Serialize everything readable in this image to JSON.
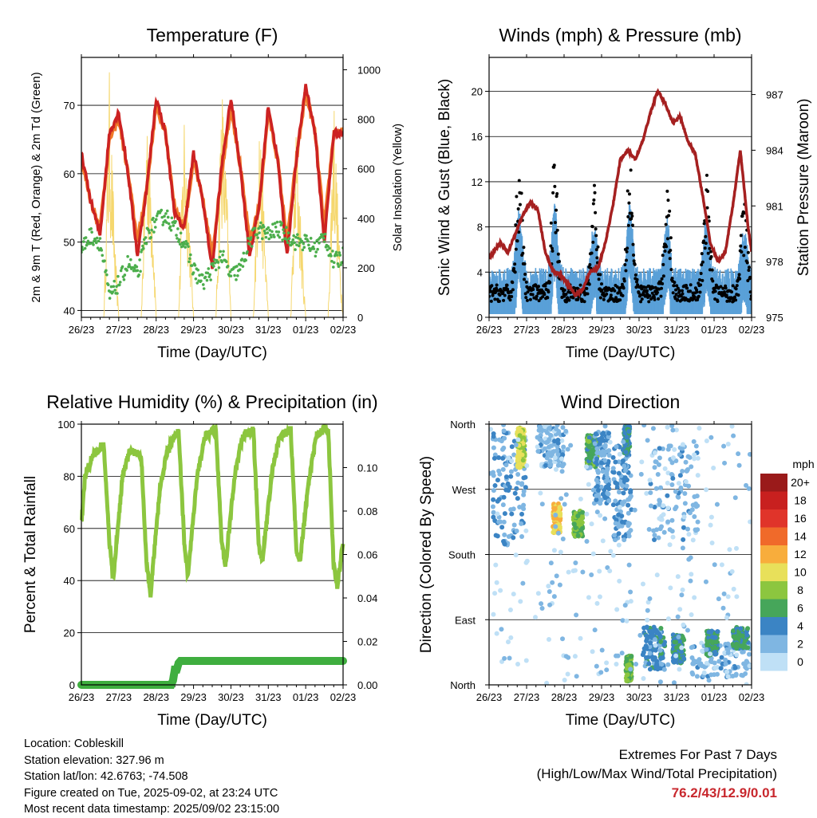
{
  "chart_data": [
    {
      "type": "line",
      "title": "Temperature (F)",
      "xlabel": "Time (Day/UTC)",
      "ylabel": "2m & 9m T (Red, Orange) & 2m Td (Green)",
      "ylabel_right": "Solar Insolation (Yellow)",
      "xticks": [
        "26/23",
        "27/23",
        "28/23",
        "29/23",
        "30/23",
        "31/23",
        "01/23",
        "02/23"
      ],
      "ylim": [
        39,
        77
      ],
      "yticks": [
        40,
        50,
        60,
        70
      ],
      "ylim_right": [
        0,
        1050
      ],
      "yticks_right": [
        0,
        200,
        400,
        600,
        800,
        1000
      ],
      "grid": true,
      "colors": {
        "t2m": "#cc2222",
        "t9m": "#f07a2a",
        "td2m": "#4cae4c",
        "solar": "#f5d76e"
      },
      "series": [
        {
          "name": "2m T",
          "x": [
            0,
            0.25,
            0.5,
            0.75,
            1,
            1.25,
            1.5,
            1.75,
            2,
            2.25,
            2.5,
            2.75,
            3,
            3.25,
            3.5,
            3.75,
            4,
            4.25,
            4.5,
            4.75,
            5,
            5.25,
            5.5,
            5.75,
            6,
            6.25,
            6.5,
            6.75,
            7
          ],
          "values": [
            63,
            56,
            51,
            66,
            69,
            60,
            48,
            58,
            71,
            66,
            54,
            52,
            63,
            56,
            46,
            61,
            71,
            61,
            48,
            55,
            70,
            62,
            48,
            62,
            73,
            66,
            50,
            66,
            66
          ]
        },
        {
          "name": "9m T",
          "x": [
            0,
            0.25,
            0.5,
            0.75,
            1,
            1.25,
            1.5,
            1.75,
            2,
            2.25,
            2.5,
            2.75,
            3,
            3.25,
            3.5,
            3.75,
            4,
            4.25,
            4.5,
            4.75,
            5,
            5.25,
            5.5,
            5.75,
            6,
            6.25,
            6.5,
            6.75,
            7
          ],
          "values": [
            62,
            56,
            52,
            65,
            68,
            60,
            50,
            58,
            70,
            66,
            55,
            52,
            62,
            56,
            48,
            60,
            70,
            61,
            50,
            55,
            69,
            62,
            50,
            62,
            72,
            66,
            52,
            66,
            66
          ]
        },
        {
          "name": "2m Td",
          "x": [
            0,
            0.25,
            0.5,
            0.75,
            1,
            1.25,
            1.5,
            1.75,
            2,
            2.25,
            2.5,
            2.75,
            3,
            3.25,
            3.5,
            3.75,
            4,
            4.25,
            4.5,
            4.75,
            5,
            5.25,
            5.5,
            5.75,
            6,
            6.25,
            6.5,
            6.75,
            7
          ],
          "values": [
            49,
            51,
            50,
            42,
            44,
            47,
            45,
            51,
            53,
            54,
            52,
            50,
            46,
            44,
            46,
            48,
            45,
            46,
            50,
            52,
            51,
            52,
            51,
            50,
            50,
            49,
            51,
            47,
            48
          ]
        },
        {
          "name": "Solar",
          "x": [
            0,
            0.6,
            0.75,
            0.9,
            1,
            1.6,
            1.75,
            1.9,
            2,
            2.6,
            2.75,
            2.9,
            3,
            3.6,
            3.75,
            3.9,
            4,
            4.6,
            4.75,
            4.9,
            5,
            5.6,
            5.75,
            5.9,
            6,
            6.6,
            6.75,
            6.9,
            7
          ],
          "values": [
            0,
            0,
            1000,
            300,
            0,
            0,
            920,
            500,
            0,
            0,
            900,
            400,
            0,
            0,
            1010,
            500,
            0,
            0,
            900,
            400,
            0,
            0,
            820,
            300,
            0,
            0,
            950,
            300,
            0
          ]
        }
      ]
    },
    {
      "type": "line",
      "title": "Winds (mph) & Pressure (mb)",
      "xlabel": "Time (Day/UTC)",
      "ylabel": "Sonic Wind & Gust (Blue, Black)",
      "ylabel_right": "Station Pressure (Maroon)",
      "xticks": [
        "26/23",
        "27/23",
        "28/23",
        "29/23",
        "30/23",
        "31/23",
        "01/23",
        "02/23"
      ],
      "ylim": [
        0,
        23
      ],
      "yticks": [
        0,
        4,
        8,
        12,
        16,
        20
      ],
      "ylim_right": [
        975,
        989
      ],
      "yticks_right": [
        975,
        978,
        981,
        984,
        987
      ],
      "grid": true,
      "colors": {
        "wind": "#5aa0d8",
        "gust": "#000000",
        "pressure": "#a52020"
      },
      "series": [
        {
          "name": "Pressure",
          "x": [
            0,
            0.3,
            0.5,
            0.7,
            0.9,
            1.1,
            1.3,
            1.5,
            1.7,
            1.9,
            2.1,
            2.3,
            2.5,
            2.7,
            2.9,
            3.1,
            3.3,
            3.5,
            3.7,
            3.9,
            4.1,
            4.3,
            4.5,
            4.7,
            4.9,
            5.1,
            5.3,
            5.5,
            5.7,
            5.9,
            6.1,
            6.3,
            6.5,
            6.7,
            6.9,
            7
          ],
          "values": [
            978.2,
            979.0,
            978.5,
            979.5,
            980.5,
            981.2,
            980.8,
            978.5,
            977.5,
            977.3,
            976.8,
            976.2,
            976.5,
            977.5,
            977.6,
            979.0,
            981.0,
            983.5,
            984.0,
            983.5,
            984.5,
            986.0,
            987.2,
            986.5,
            985.5,
            985.8,
            984.5,
            983.8,
            981.5,
            979.0,
            978.0,
            978.5,
            981.0,
            984.0,
            980.0,
            978.5
          ]
        }
      ]
    },
    {
      "type": "line",
      "title": "Relative Humidity (%) & Precipitation (in)",
      "xlabel": "Time (Day/UTC)",
      "ylabel": "Percent & Total Rainfall",
      "xticks": [
        "26/23",
        "27/23",
        "28/23",
        "29/23",
        "30/23",
        "31/23",
        "01/23",
        "02/23"
      ],
      "ylim": [
        0,
        100
      ],
      "yticks": [
        0,
        20,
        40,
        60,
        80,
        100
      ],
      "ylim_right": [
        0,
        0.12
      ],
      "yticks_right": [
        "0.00",
        "0.02",
        "0.04",
        "0.06",
        "0.08",
        "0.10"
      ],
      "grid": true,
      "colors": {
        "rh": "#8cc63f",
        "precip": "#3fae3f"
      },
      "series": [
        {
          "name": "RH",
          "x": [
            0,
            0.1,
            0.3,
            0.6,
            0.75,
            0.85,
            1.1,
            1.3,
            1.6,
            1.75,
            1.85,
            2.1,
            2.3,
            2.6,
            2.75,
            2.85,
            3.1,
            3.3,
            3.6,
            3.75,
            3.85,
            4.1,
            4.3,
            4.6,
            4.75,
            4.85,
            5.1,
            5.3,
            5.6,
            5.75,
            5.85,
            6.1,
            6.3,
            6.6,
            6.75,
            6.85,
            7
          ],
          "values": [
            62,
            80,
            88,
            92,
            55,
            40,
            80,
            90,
            88,
            45,
            35,
            75,
            90,
            98,
            55,
            42,
            80,
            95,
            98,
            55,
            45,
            80,
            95,
            98,
            52,
            48,
            82,
            95,
            98,
            52,
            48,
            80,
            96,
            99,
            45,
            38,
            55
          ]
        },
        {
          "name": "Precip",
          "x": [
            0,
            2.4,
            2.45,
            2.5,
            2.55,
            2.6,
            2.65,
            7
          ],
          "values": [
            0,
            0,
            0.002,
            0.007,
            0.007,
            0.01,
            0.011,
            0.011
          ]
        }
      ]
    },
    {
      "type": "scatter",
      "title": "Wind Direction",
      "xlabel": "Time (Day/UTC)",
      "ylabel": "Direction (Colored By Speed)",
      "xticks": [
        "26/23",
        "27/23",
        "28/23",
        "29/23",
        "30/23",
        "31/23",
        "01/23",
        "02/23"
      ],
      "yticks": [
        "North",
        "West",
        "South",
        "East",
        "North"
      ],
      "legend_title": "mph",
      "legend": [
        "20+",
        "18",
        "16",
        "14",
        "12",
        "10",
        "8",
        "6",
        "4",
        "2",
        "0"
      ],
      "legend_colors": [
        "#9a1a1a",
        "#c8201f",
        "#e0342a",
        "#f06a2a",
        "#f8ad3c",
        "#e8e05a",
        "#8cc63f",
        "#46a65a",
        "#3b84c4",
        "#7fb6e2",
        "#bfe0f6"
      ],
      "clusters": [
        {
          "x": [
            0.1,
            1.0
          ],
          "dir": [
            190,
            350
          ],
          "speed": 3
        },
        {
          "x": [
            0.75,
            0.95
          ],
          "dir": [
            300,
            355
          ],
          "speed": 9
        },
        {
          "x": [
            1.3,
            2.0
          ],
          "dir": [
            300,
            360
          ],
          "speed": 2
        },
        {
          "x": [
            1.7,
            1.9
          ],
          "dir": [
            210,
            250
          ],
          "speed": 11
        },
        {
          "x": [
            2.25,
            2.5
          ],
          "dir": [
            205,
            240
          ],
          "speed": 7
        },
        {
          "x": [
            2.6,
            2.9
          ],
          "dir": [
            300,
            345
          ],
          "speed": 6
        },
        {
          "x": [
            2.8,
            3.2
          ],
          "dir": [
            250,
            350
          ],
          "speed": 3
        },
        {
          "x": [
            3.3,
            3.8
          ],
          "dir": [
            200,
            330
          ],
          "speed": 3
        },
        {
          "x": [
            3.6,
            3.75
          ],
          "dir": [
            320,
            358
          ],
          "speed": 5
        },
        {
          "x": [
            3.65,
            3.8
          ],
          "dir": [
            5,
            40
          ],
          "speed": 7
        },
        {
          "x": [
            4.1,
            4.7
          ],
          "dir": [
            20,
            80
          ],
          "speed": 4
        },
        {
          "x": [
            4.2,
            5.6
          ],
          "dir": [
            200,
            330
          ],
          "speed": 2
        },
        {
          "x": [
            4.9,
            5.2
          ],
          "dir": [
            30,
            70
          ],
          "speed": 5
        },
        {
          "x": [
            5.4,
            7.0
          ],
          "dir": [
            10,
            60
          ],
          "speed": 2
        },
        {
          "x": [
            5.8,
            6.1
          ],
          "dir": [
            40,
            75
          ],
          "speed": 5
        },
        {
          "x": [
            6.5,
            6.9
          ],
          "dir": [
            50,
            80
          ],
          "speed": 5
        },
        {
          "x": [
            0.0,
            7.0
          ],
          "dir": [
            0,
            360
          ],
          "speed": 1
        }
      ]
    }
  ],
  "info": {
    "location": "Location: Cobleskill",
    "elevation": "Station elevation: 327.96 m",
    "latlon": "Station lat/lon: 42.6763; -74.508",
    "created": "Figure created on Tue, 2025-09-02, at 23:24 UTC",
    "recent": "Most recent data timestamp: 2025/09/02 23:15:00"
  },
  "extremes": {
    "line1": "Extremes For Past 7 Days",
    "line2": "(High/Low/Max Wind/Total Precipitation)",
    "values": "76.2/43/12.9/0.01"
  }
}
